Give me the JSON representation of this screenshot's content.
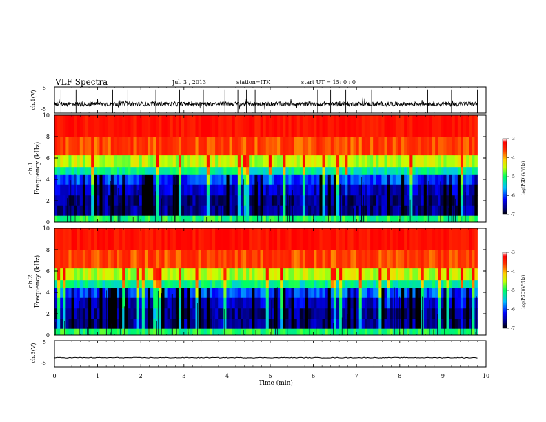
{
  "header": {
    "title": "VLF Spectra",
    "date": "Jul. 3 , 2013",
    "station": "station=ITK",
    "start": "start UT = 15: 0 : 0"
  },
  "panels": {
    "ch1_wave": {
      "ylabel": "ch.1(V)"
    },
    "ch1_spec": {
      "ylabel_line1": "ch.1",
      "ylabel_line2": "Frequency (kHz)"
    },
    "ch2_spec": {
      "ylabel_line1": "ch.2",
      "ylabel_line2": "Frequency (kHz)"
    },
    "ch3_wave": {
      "ylabel": "ch.3(V)"
    }
  },
  "colorbar": {
    "label": "log(PSD)(V²/Hz)",
    "ticks": [
      "-3",
      "-4",
      "-5",
      "-6",
      "-7"
    ]
  },
  "xaxis": {
    "label": "Time (min)"
  },
  "chart_data": [
    {
      "type": "line",
      "name": "ch.1 waveform",
      "ylabel": "ch.1(V)",
      "ylim": [
        -5,
        5
      ],
      "yticks": [
        "5",
        "-5"
      ],
      "xlim": [
        0,
        9.8
      ],
      "baseline": -1.5,
      "spikes_min": [
        0.15,
        0.5,
        1.35,
        1.7,
        2.35,
        2.9,
        3.45,
        3.95,
        4.25,
        4.45,
        4.65,
        6.1,
        6.4,
        6.75,
        7.35,
        8.65,
        9.2,
        9.8
      ]
    },
    {
      "type": "heatmap",
      "name": "ch.1 spectrogram",
      "ylabel": "Frequency (kHz)",
      "ylim": [
        0,
        10
      ],
      "xlim": [
        0,
        9.8
      ],
      "yticks": [
        "0",
        "2",
        "4",
        "6",
        "8",
        "10"
      ],
      "rows_freq_khz": [
        9,
        7,
        5.5,
        4.8,
        4,
        3,
        2,
        1,
        0.2
      ],
      "rows_log_psd": [
        -3.2,
        -3.6,
        -4.5,
        -5.2,
        -6.0,
        -6.4,
        -6.6,
        -6.6,
        -5.0
      ],
      "zlim": [
        -7,
        -3
      ]
    },
    {
      "type": "heatmap",
      "name": "ch.2 spectrogram",
      "ylabel": "Frequency (kHz)",
      "ylim": [
        0,
        10
      ],
      "xlim": [
        0,
        9.8
      ],
      "yticks": [
        "0",
        "2",
        "4",
        "6",
        "8",
        "10"
      ],
      "rows_freq_khz": [
        9,
        7,
        5.5,
        4.8,
        4,
        3,
        2,
        1,
        0.2
      ],
      "rows_log_psd": [
        -3.2,
        -3.6,
        -4.5,
        -5.2,
        -6.0,
        -6.4,
        -6.6,
        -6.6,
        -5.0
      ],
      "zlim": [
        -7,
        -3
      ]
    },
    {
      "type": "line",
      "name": "ch.3 waveform",
      "ylabel": "ch.3(V)",
      "ylim": [
        -5,
        5
      ],
      "yticks": [
        "5",
        "-5"
      ],
      "xlim": [
        0,
        9.8
      ],
      "baseline": -1.5
    }
  ],
  "xticks": [
    "0",
    "1",
    "2",
    "3",
    "4",
    "5",
    "6",
    "7",
    "8",
    "9",
    "10"
  ],
  "xrange": [
    0,
    10
  ]
}
